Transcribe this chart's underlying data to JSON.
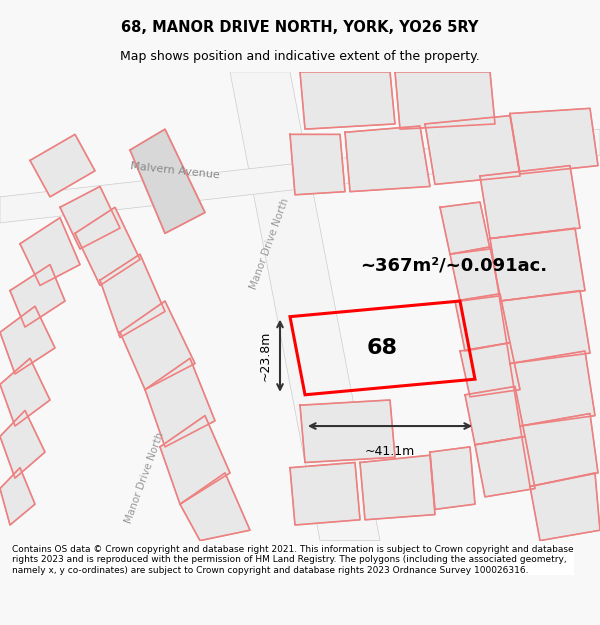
{
  "title": "68, MANOR DRIVE NORTH, YORK, YO26 5RY",
  "subtitle": "Map shows position and indicative extent of the property.",
  "footer": "Contains OS data © Crown copyright and database right 2021. This information is subject to Crown copyright and database rights 2023 and is reproduced with the permission of HM Land Registry. The polygons (including the associated geometry, namely x, y co-ordinates) are subject to Crown copyright and database rights 2023 Ordnance Survey 100026316.",
  "area_text": "~367m²/~0.091ac.",
  "width_text": "~41.1m",
  "height_text": "~23.8m",
  "number_text": "68",
  "bg_color": "#f5f5f5",
  "map_bg": "#ffffff",
  "title_color": "#000000",
  "footer_color": "#000000",
  "road_label_1": "Malvern Avenue",
  "road_label_2": "Manor Drive North",
  "road_label_3": "Manor Drive North",
  "highlight_color": "#ff0000",
  "building_fill": "#e0e0e0",
  "building_outline": "#c0c0c0",
  "road_outline": "#d0d0d0",
  "pink_line": "#f08080"
}
